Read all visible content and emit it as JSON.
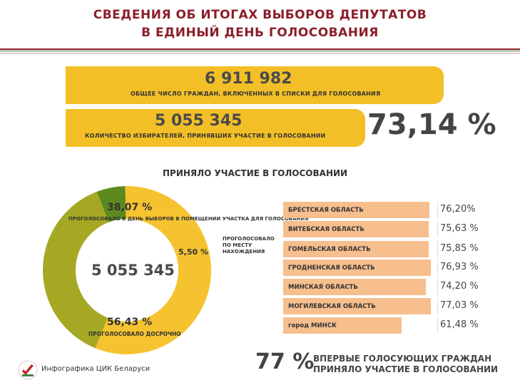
{
  "header": {
    "title_line1": "СВЕДЕНИЯ ОБ ИТОГАХ ВЫБОРОВ ДЕПУТАТОВ",
    "title_line2": "В ЕДИНЫЙ ДЕНЬ ГОЛОСОВАНИЯ"
  },
  "totals": {
    "registered_value": "6 911 982",
    "registered_caption": "ОБЩЕЕ ЧИСЛО ГРАЖДАН, ВКЛЮЧЕННЫХ В СПИСКИ ДЛЯ ГОЛОСОВАНИЯ",
    "voted_value": "5 055 345",
    "voted_caption": "КОЛИЧЕСТВО ИЗБИРАТЕЛЕЙ, ПРИНЯВШИХ УЧАСТИЕ В ГОЛОСОВАНИИ",
    "turnout": "73,14 %"
  },
  "section_title": "ПРИНЯЛО УЧАСТИЕ В ГОЛОСОВАНИИ",
  "colors": {
    "title": "#8b1f2a",
    "bar": "#f3bf27",
    "donut_election_day": "#a6a824",
    "donut_early": "#f5c330",
    "donut_at_location": "#5d8a1e",
    "region_bar": "#f7be8e",
    "rule_red": "#8b1f2a",
    "rule_green": "#3e8a3a"
  },
  "chart_data": [
    {
      "type": "pie",
      "center_label": "5 055 345",
      "slices": [
        {
          "value": 38.07,
          "label": "38,07 %",
          "caption": "ПРОГОЛОСОВАЛО В ДЕНЬ ВЫБОРОВ В ПОМЕЩЕНИИ УЧАСТКА ДЛЯ ГОЛОСОВАНИЯ",
          "color": "#a6a824"
        },
        {
          "value": 5.5,
          "label": "5,50 %",
          "caption": "ПРОГОЛОСОВАЛО ПО МЕСТУ НАХОЖДЕНИЯ",
          "color": "#5d8a1e"
        },
        {
          "value": 56.43,
          "label": "56,43 %",
          "caption": "ПРОГОЛОСОВАЛО ДОСРОЧНО",
          "color": "#f5c330"
        }
      ]
    },
    {
      "type": "bar",
      "categories": [
        "БРЕСТСКАЯ ОБЛАСТЬ",
        "ВИТЕБСКАЯ ОБЛАСТЬ",
        "ГОМЕЛЬСКАЯ ОБЛАСТЬ",
        "ГРОДНЕНСКАЯ ОБЛАСТЬ",
        "МИНСКАЯ ОБЛАСТЬ",
        "МОГИЛЕВСКАЯ ОБЛАСТЬ",
        "город МИНСК"
      ],
      "values": [
        76.2,
        75.63,
        75.85,
        76.93,
        74.2,
        77.03,
        61.48
      ],
      "value_labels": [
        "76,20%",
        "75,63 %",
        "75,85 %",
        "76,93 %",
        "74,20 %",
        "77,03 %",
        "61,48 %"
      ]
    }
  ],
  "footer": {
    "first_time_pct": "77 %",
    "first_time_caption_line1": "ВПЕРВЫЕ ГОЛОСУЮЩИХ ГРАЖДАН",
    "first_time_caption_line2": "ПРИНЯЛО УЧАСТИЕ В ГОЛОСОВАНИИ",
    "logo_text": "Инфографика ЦИК Беларуси"
  }
}
